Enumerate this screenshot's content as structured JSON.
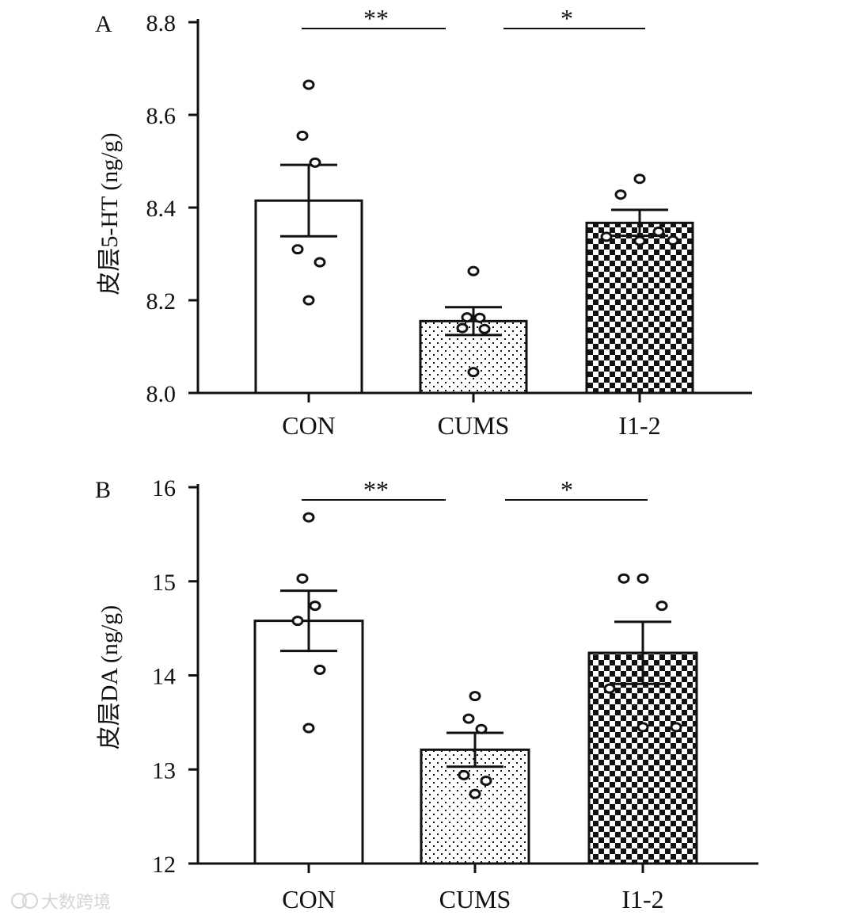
{
  "chart_data": [
    {
      "panel": "A",
      "type": "bar",
      "ylabel": "皮层5-HT (ng/g)",
      "ylim": [
        8.0,
        8.8
      ],
      "yticks": [
        8.0,
        8.2,
        8.4,
        8.6,
        8.8
      ],
      "tick_labels": [
        "8.0",
        "8.2",
        "8.4",
        "8.6",
        "8.8"
      ],
      "categories": [
        "CON",
        "CUMS",
        "I1-2"
      ],
      "values": [
        8.415,
        8.155,
        8.367
      ],
      "sem": [
        0.077,
        0.03,
        0.028
      ],
      "fills": [
        "none",
        "dots",
        "checker"
      ],
      "points": [
        [
          8.665,
          8.555,
          8.497,
          8.31,
          8.282,
          8.2
        ],
        [
          8.263,
          8.163,
          8.162,
          8.14,
          8.138,
          8.045
        ],
        [
          8.462,
          8.428,
          8.348,
          8.337,
          8.329,
          8.328
        ]
      ],
      "significance": [
        {
          "from": "CON",
          "to": "CUMS",
          "label": "**"
        },
        {
          "from": "CUMS",
          "to": "I1-2",
          "label": "*"
        }
      ]
    },
    {
      "panel": "B",
      "type": "bar",
      "ylabel": "皮层DA (ng/g)",
      "ylim": [
        12,
        16
      ],
      "yticks": [
        12,
        13,
        14,
        15,
        16
      ],
      "tick_labels": [
        "12",
        "13",
        "14",
        "15",
        "16"
      ],
      "categories": [
        "CON",
        "CUMS",
        "I1-2"
      ],
      "values": [
        14.58,
        13.21,
        14.24
      ],
      "sem": [
        0.32,
        0.18,
        0.33
      ],
      "fills": [
        "none",
        "dots",
        "checker"
      ],
      "points": [
        [
          15.68,
          15.03,
          14.74,
          14.58,
          14.06,
          13.44
        ],
        [
          13.78,
          13.54,
          13.43,
          12.94,
          12.88,
          12.74
        ],
        [
          15.03,
          15.03,
          14.74,
          13.86,
          13.45,
          13.45
        ]
      ],
      "significance": [
        {
          "from": "CON",
          "to": "CUMS",
          "label": "**"
        },
        {
          "from": "CUMS",
          "to": "I1-2",
          "label": "*"
        }
      ]
    }
  ],
  "watermark": "大数跨境",
  "colors": {
    "ink": "#111111",
    "bar_fill": "#ffffff",
    "watermark": "#d4d4d4"
  }
}
